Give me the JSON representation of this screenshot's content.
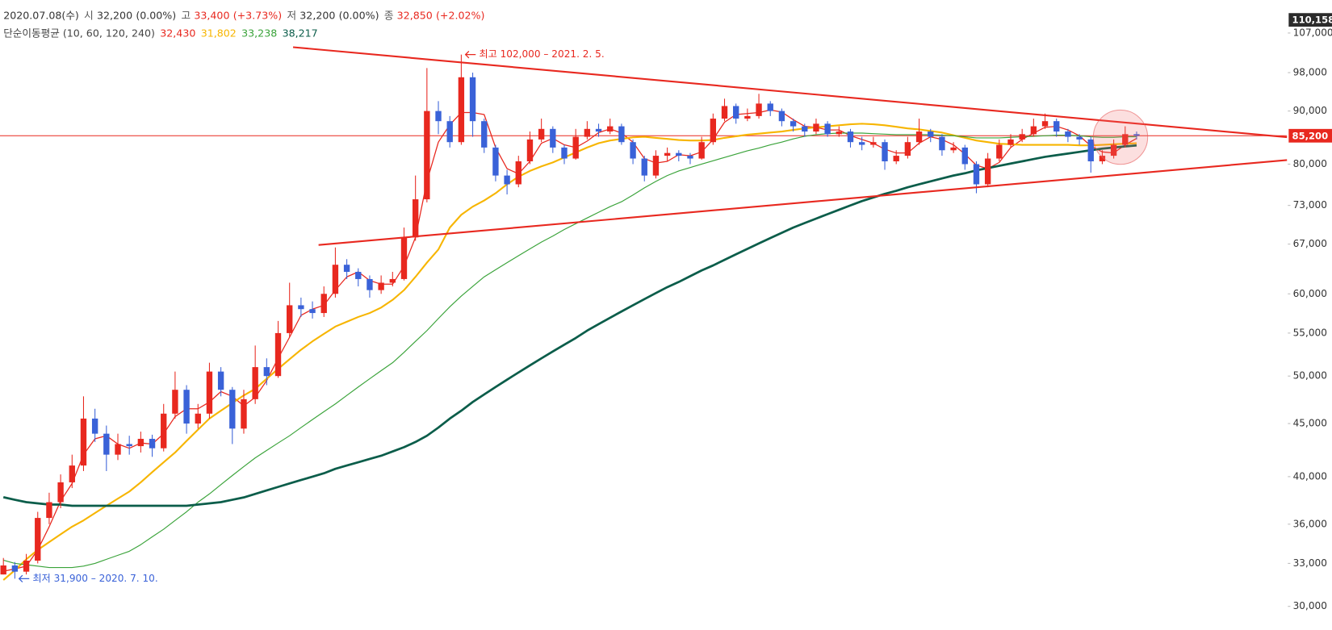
{
  "chart_data": {
    "type": "candlestick",
    "header": {
      "date": "2020.07.08(수)",
      "items": [
        {
          "label": "시",
          "value": "32,200",
          "change": "(0.00%)",
          "color": "#333333"
        },
        {
          "label": "고",
          "value": "33,400",
          "change": "(+3.73%)",
          "color": "#e8281f"
        },
        {
          "label": "저",
          "value": "32,200",
          "change": "(0.00%)",
          "color": "#333333"
        },
        {
          "label": "종",
          "value": "32,850",
          "change": "(+2.02%)",
          "color": "#e8281f"
        }
      ],
      "ma_label": "단순이동평균 (10, 60, 120, 240)"
    },
    "log_scale": true,
    "ylim": [
      28500,
      115000
    ],
    "yticks": [
      {
        "value": 30000,
        "label": "30,000"
      },
      {
        "value": 33000,
        "label": "33,000"
      },
      {
        "value": 36000,
        "label": "36,000"
      },
      {
        "value": 40000,
        "label": "40,000"
      },
      {
        "value": 45000,
        "label": "45,000"
      },
      {
        "value": 50000,
        "label": "50,000"
      },
      {
        "value": 55000,
        "label": "55,000"
      },
      {
        "value": 60000,
        "label": "60,000"
      },
      {
        "value": 67000,
        "label": "67,000"
      },
      {
        "value": 73000,
        "label": "73,000"
      },
      {
        "value": 80000,
        "label": "80,000"
      },
      {
        "value": 90000,
        "label": "90,000"
      },
      {
        "value": 98000,
        "label": "98,000"
      },
      {
        "value": 107000,
        "label": "107,000"
      }
    ],
    "price_markers": [
      {
        "value": 110158,
        "label": "110,158",
        "color": "#2b2b2b",
        "line": false
      },
      {
        "value": 85200,
        "label": "85,200",
        "color": "#e8281f",
        "line": true
      }
    ],
    "up_color": "#e8281f",
    "down_color": "#3a62d8",
    "categories": [
      null,
      null,
      null,
      null,
      null,
      null,
      null,
      null,
      null,
      null,
      null,
      null,
      null,
      null,
      null,
      null,
      null,
      null,
      null,
      null,
      null,
      null,
      null,
      null,
      null,
      null,
      null,
      null,
      null,
      null,
      null,
      null,
      null,
      null,
      null,
      null,
      null,
      null,
      null,
      null,
      null,
      null,
      null,
      null,
      null,
      null,
      null,
      null,
      null,
      null,
      null,
      null,
      null,
      null,
      null,
      null,
      null,
      null,
      null,
      null,
      null,
      null,
      null,
      null,
      null,
      null,
      null,
      null,
      null,
      null,
      null,
      null,
      null,
      null,
      null,
      null,
      null,
      null,
      null,
      null,
      null,
      null,
      null,
      null,
      null,
      null,
      null,
      null,
      null,
      null,
      null,
      null,
      null,
      null,
      null,
      null,
      null,
      null,
      null,
      null
    ],
    "open": [
      32200,
      32850,
      32400,
      33200,
      36500,
      37800,
      39500,
      41000,
      45500,
      44000,
      42000,
      43000,
      42800,
      43500,
      42600,
      46000,
      48500,
      45000,
      46000,
      50500,
      48500,
      44500,
      47500,
      51000,
      50000,
      55000,
      58500,
      58000,
      57500,
      60000,
      64000,
      63000,
      62000,
      60500,
      61500,
      62000,
      68000,
      74000,
      90000,
      88000,
      84000,
      97000,
      88000,
      83000,
      78000,
      76500,
      80500,
      84500,
      86500,
      83000,
      81000,
      85000,
      86500,
      86000,
      87000,
      84000,
      81000,
      78000,
      81500,
      82000,
      81500,
      81000,
      84000,
      88500,
      91000,
      88500,
      89000,
      91500,
      90000,
      88000,
      87000,
      86000,
      87500,
      85500,
      86000,
      84000,
      83500,
      84000,
      80500,
      81500,
      84000,
      86000,
      85000,
      82500,
      83000,
      80000,
      76500,
      81000,
      83500,
      84500,
      85500,
      87000,
      88000,
      86000,
      85000,
      84500,
      80500,
      81500,
      83500,
      85500
    ],
    "high": [
      33400,
      33100,
      33700,
      37000,
      38600,
      40200,
      42000,
      47800,
      46500,
      44800,
      44000,
      43800,
      44200,
      43900,
      47000,
      50500,
      49000,
      47000,
      51500,
      51000,
      48800,
      48500,
      53500,
      52000,
      56500,
      61500,
      59500,
      59000,
      61000,
      66500,
      64800,
      63500,
      62500,
      62500,
      63000,
      69500,
      78000,
      99000,
      92000,
      89000,
      102000,
      98000,
      88500,
      83500,
      79000,
      81500,
      86000,
      88500,
      87000,
      83500,
      86500,
      88000,
      87500,
      88500,
      87500,
      84500,
      81500,
      82500,
      83000,
      82500,
      82000,
      85000,
      89500,
      92500,
      91500,
      90500,
      93500,
      92000,
      90500,
      88500,
      87500,
      88500,
      88000,
      87000,
      86500,
      85000,
      85000,
      84500,
      82500,
      85000,
      88500,
      86500,
      85500,
      84000,
      83500,
      80500,
      82000,
      84500,
      85500,
      86500,
      88500,
      89500,
      88500,
      86500,
      85500,
      85000,
      82500,
      84500,
      87000,
      86000
    ],
    "low": [
      32200,
      31900,
      32200,
      33000,
      36000,
      37300,
      39000,
      40500,
      43200,
      40500,
      41500,
      42000,
      42200,
      41800,
      42300,
      45500,
      44000,
      44500,
      45500,
      47800,
      43000,
      44000,
      47000,
      49000,
      49800,
      54500,
      57000,
      56800,
      57000,
      59500,
      62000,
      61000,
      59500,
      60000,
      61000,
      61800,
      67500,
      73500,
      85500,
      83000,
      83500,
      85000,
      82000,
      77000,
      74800,
      76000,
      80000,
      84000,
      82000,
      80000,
      80800,
      84500,
      85000,
      85500,
      83500,
      80000,
      77000,
      77500,
      80500,
      80500,
      80000,
      80800,
      83500,
      88000,
      87500,
      88000,
      88500,
      89000,
      87000,
      86000,
      85000,
      85500,
      85000,
      85000,
      83000,
      82500,
      83000,
      79000,
      80000,
      81000,
      83500,
      84000,
      81500,
      82000,
      79000,
      75000,
      76000,
      80500,
      83000,
      84000,
      85000,
      86500,
      85000,
      84000,
      83500,
      78500,
      80000,
      81000,
      83000,
      84500
    ],
    "close": [
      32850,
      32400,
      33200,
      36500,
      37800,
      39500,
      41000,
      45500,
      44000,
      42000,
      43000,
      42800,
      43500,
      42600,
      46000,
      48500,
      45000,
      46000,
      50500,
      48500,
      44500,
      47500,
      51000,
      50000,
      55000,
      58500,
      58000,
      57500,
      60000,
      64000,
      63000,
      62000,
      60500,
      61500,
      62000,
      68000,
      74000,
      90000,
      88000,
      84000,
      97000,
      88000,
      83000,
      78000,
      76500,
      80500,
      84500,
      86500,
      83000,
      81000,
      85000,
      86500,
      86000,
      87000,
      84000,
      81000,
      78000,
      81500,
      82000,
      81500,
      81000,
      84000,
      88500,
      91000,
      88500,
      89000,
      91500,
      90000,
      88000,
      87000,
      86000,
      87500,
      85500,
      86000,
      84000,
      83500,
      84000,
      80500,
      81500,
      84000,
      86000,
      85000,
      82500,
      83000,
      80000,
      76500,
      81000,
      83500,
      84500,
      85500,
      87000,
      88000,
      86000,
      85000,
      84500,
      80500,
      81500,
      83500,
      85500,
      85200
    ],
    "series": [
      {
        "color": "#e8281f",
        "width": 1.2,
        "legend_value": "32,430",
        "values": [
          32430,
          32600,
          32800,
          34000,
          35800,
          37900,
          39400,
          42000,
          43500,
          43800,
          43000,
          42600,
          43100,
          43000,
          44000,
          45700,
          46500,
          46500,
          47200,
          48300,
          47800,
          46800,
          47700,
          49500,
          52000,
          54500,
          57200,
          58000,
          58500,
          60500,
          62300,
          63000,
          61800,
          61300,
          61300,
          63800,
          68000,
          77000,
          84000,
          87300,
          89700,
          89700,
          89300,
          83000,
          79200,
          78300,
          80500,
          83800,
          84700,
          83500,
          83000,
          84200,
          85800,
          86500,
          85700,
          84000,
          81000,
          80200,
          80500,
          81700,
          81500,
          82200,
          84500,
          87800,
          89300,
          89500,
          89700,
          90200,
          89800,
          88300,
          87000,
          86800,
          86300,
          86300,
          85200,
          84500,
          83800,
          82700,
          82000,
          82000,
          83800,
          85000,
          84500,
          83500,
          81800,
          79800,
          79200,
          80300,
          83000,
          84500,
          85700,
          86800,
          87000,
          86300,
          85200,
          83300,
          82200,
          82000,
          83500,
          84700
        ]
      },
      {
        "color": "#f7b500",
        "width": 2,
        "legend_value": "31,802",
        "values": [
          31802,
          32500,
          33300,
          34000,
          34600,
          35200,
          35800,
          36300,
          36900,
          37500,
          38100,
          38700,
          39500,
          40400,
          41300,
          42200,
          43300,
          44400,
          45500,
          46300,
          47100,
          47900,
          48600,
          49700,
          50800,
          51900,
          53000,
          54000,
          54900,
          55800,
          56400,
          57000,
          57500,
          58200,
          59200,
          60500,
          62300,
          64300,
          66200,
          69500,
          71500,
          72800,
          73800,
          75000,
          76500,
          77800,
          78800,
          79600,
          80300,
          81200,
          82100,
          83000,
          83800,
          84300,
          84600,
          84900,
          85000,
          84800,
          84600,
          84400,
          84300,
          84300,
          84400,
          84800,
          85100,
          85400,
          85600,
          85800,
          86000,
          86300,
          86600,
          86800,
          87000,
          87200,
          87400,
          87500,
          87400,
          87200,
          86900,
          86600,
          86400,
          86100,
          85800,
          85300,
          84800,
          84300,
          84000,
          83700,
          83600,
          83500,
          83500,
          83500,
          83500,
          83500,
          83400,
          83400,
          83500,
          83600,
          83700,
          83800
        ]
      },
      {
        "color": "#3aa33a",
        "width": 1.1,
        "legend_value": "33,238",
        "values": [
          33238,
          33000,
          32900,
          32800,
          32700,
          32700,
          32700,
          32800,
          33000,
          33300,
          33600,
          33900,
          34400,
          35000,
          35600,
          36300,
          37000,
          37800,
          38500,
          39300,
          40100,
          40900,
          41700,
          42400,
          43100,
          43800,
          44600,
          45400,
          46200,
          47000,
          47900,
          48800,
          49700,
          50600,
          51500,
          52700,
          54000,
          55300,
          56800,
          58300,
          59700,
          61000,
          62300,
          63300,
          64300,
          65300,
          66300,
          67300,
          68200,
          69200,
          70100,
          71000,
          71900,
          72800,
          73600,
          74700,
          75900,
          77000,
          78000,
          78800,
          79400,
          80000,
          80600,
          81200,
          81800,
          82400,
          82900,
          83500,
          84000,
          84600,
          85100,
          85400,
          85600,
          85700,
          85700,
          85700,
          85600,
          85500,
          85400,
          85400,
          85400,
          85400,
          85300,
          85200,
          85000,
          84800,
          84800,
          84800,
          84900,
          85000,
          85100,
          85200,
          85300,
          85300,
          85200,
          85000,
          84900,
          84900,
          85000,
          85000
        ]
      },
      {
        "color": "#0b5d4a",
        "width": 2.6,
        "legend_value": "38,217",
        "values": [
          38217,
          38000,
          37800,
          37700,
          37600,
          37600,
          37500,
          37500,
          37500,
          37500,
          37500,
          37500,
          37500,
          37500,
          37500,
          37500,
          37500,
          37600,
          37700,
          37800,
          38000,
          38200,
          38500,
          38800,
          39100,
          39400,
          39700,
          40000,
          40300,
          40700,
          41000,
          41300,
          41600,
          41900,
          42300,
          42700,
          43200,
          43800,
          44600,
          45500,
          46300,
          47200,
          48000,
          48800,
          49600,
          50400,
          51200,
          52000,
          52800,
          53600,
          54400,
          55300,
          56100,
          56900,
          57700,
          58500,
          59300,
          60100,
          60900,
          61600,
          62400,
          63200,
          63900,
          64700,
          65500,
          66300,
          67100,
          67900,
          68700,
          69500,
          70200,
          70900,
          71600,
          72300,
          73000,
          73700,
          74300,
          74900,
          75400,
          76000,
          76500,
          77000,
          77500,
          78000,
          78400,
          78900,
          79300,
          79700,
          80100,
          80500,
          80900,
          81300,
          81600,
          81900,
          82200,
          82500,
          82800,
          83000,
          83200,
          83400
        ]
      }
    ],
    "annotations": [
      {
        "text": "최고 102,000 – 2021. 2. 5.",
        "value": 102000,
        "color": "#e8281f"
      },
      {
        "text": "최저 31,900 – 2020. 7. 10.",
        "value": 31900,
        "color": "#3a62d8"
      }
    ]
  }
}
